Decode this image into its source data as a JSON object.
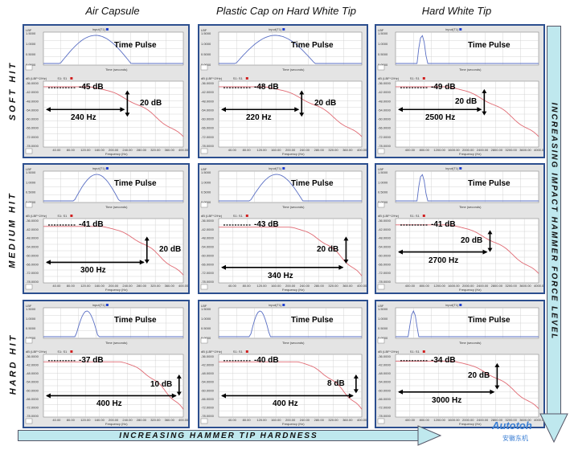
{
  "columns": [
    "Air Capsule",
    "Plastic Cap on Hard White Tip",
    "Hard White Tip"
  ],
  "rows": [
    "SOFT HIT",
    "MEDIUM HIT",
    "HARD HIT"
  ],
  "pulse_label": "Time Pulse",
  "axes": {
    "time_label": "Time (seconds)",
    "freq_label": "Frequency (Hz)",
    "top_channel": "input(T1)",
    "bottom_channel": "S1: S1",
    "db_units": "dB (LBF^2/Hz)",
    "lbf": "LBF",
    "button": "Lin"
  },
  "ticks": {
    "freq_low": [
      "40.00",
      "80.00",
      "120.00",
      "160.00",
      "200.00",
      "240.00",
      "280.00",
      "320.00",
      "360.00",
      "400.00"
    ],
    "freq_high": [
      "400.00",
      "800.00",
      "1200.00",
      "1600.00",
      "2000.00",
      "2400.00",
      "2800.00",
      "3200.00",
      "3600.00",
      "4000.00"
    ],
    "time": [
      "0.00",
      "0.000",
      "0.0000"
    ],
    "db": [
      "-36.0000",
      "-42.0000",
      "-48.0000",
      "-54.0000",
      "-60.0000",
      "-66.0000",
      "-72.0000",
      "-78.0000"
    ],
    "pulse_y": [
      "1.5000",
      "1.0000",
      "0.5000",
      "0.0000"
    ]
  },
  "cells": [
    {
      "db": "-45 dB",
      "drop": "20 dB",
      "freq": "240 Hz"
    },
    {
      "db": "-48 dB",
      "drop": "20 dB",
      "freq": "220 Hz"
    },
    {
      "db": "-49 dB",
      "drop": "20 dB",
      "freq": "2500 Hz"
    },
    {
      "db": "-41 dB",
      "drop": "20 dB",
      "freq": "300 Hz"
    },
    {
      "db": "-43 dB",
      "drop": "20 dB",
      "freq": "340 Hz"
    },
    {
      "db": "-41 dB",
      "drop": "20 dB",
      "freq": "2700 Hz"
    },
    {
      "db": "-37 dB",
      "drop": "10 dB",
      "freq": "400 Hz"
    },
    {
      "db": "-40 dB",
      "drop": "8 dB",
      "freq": "400 Hz"
    },
    {
      "db": "-34 dB",
      "drop": "20 dB",
      "freq": "3000 Hz"
    }
  ],
  "banner_vertical": "INCREASING IMPACT HAMMER FORCE LEVEL",
  "banner_horizontal": "INCREASING HAMMER TIP HARDNESS",
  "logo": "Autotoh",
  "logo_sub": "安徽东机",
  "colors": {
    "pulse": "#5a6fc4",
    "spectrum": "#e06a73",
    "border": "#2c4f8f",
    "banner": "#bfe8ee"
  }
}
